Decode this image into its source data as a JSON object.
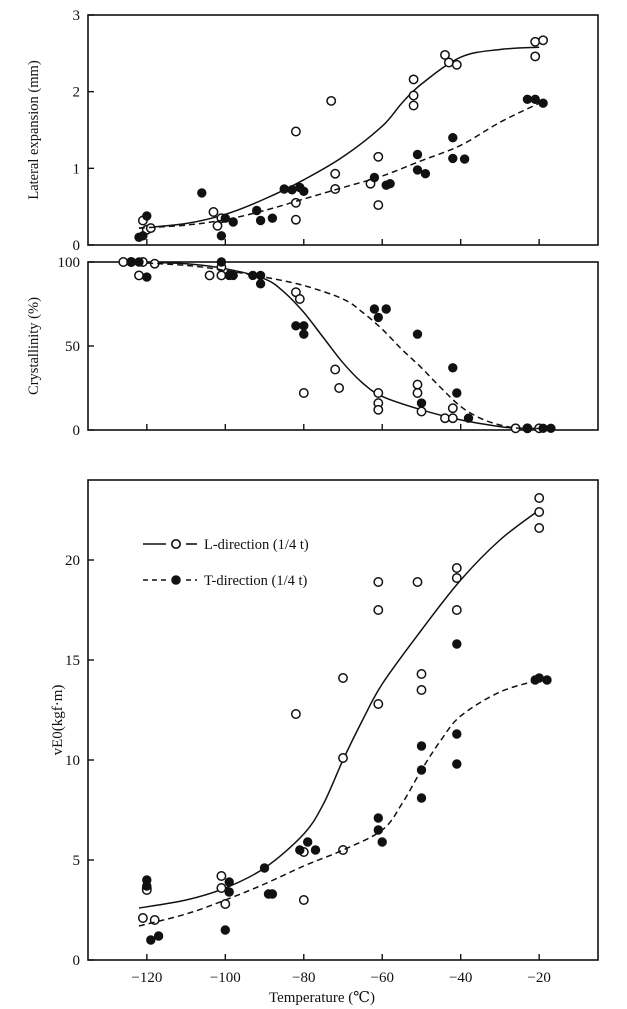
{
  "xaxis": {
    "label": "Temperature (℃)",
    "range": [
      -135,
      -5
    ],
    "ticks": [
      -120,
      -100,
      -80,
      -60,
      -40,
      -20
    ],
    "tick_labels": [
      "−120",
      "−100",
      "−80",
      "−60",
      "−40",
      "−20"
    ]
  },
  "chart_data": [
    {
      "type": "scatter",
      "title": "",
      "ylabel": "Lateral expansion (mm)",
      "xlabel": "",
      "xlim": [
        -135,
        -5
      ],
      "ylim": [
        0,
        3
      ],
      "yticks": [
        0,
        1,
        2,
        3
      ],
      "grid": false,
      "series": [
        {
          "marker": "open-circle",
          "line": "solid",
          "points": [
            [
              -121,
              0.32
            ],
            [
              -120,
              0.2
            ],
            [
              -119,
              0.22
            ],
            [
              -103,
              0.43
            ],
            [
              -102,
              0.25
            ],
            [
              -101,
              0.35
            ],
            [
              -82,
              1.48
            ],
            [
              -82,
              0.55
            ],
            [
              -82,
              0.33
            ],
            [
              -73,
              1.88
            ],
            [
              -72,
              0.93
            ],
            [
              -72,
              0.73
            ],
            [
              -63,
              0.8
            ],
            [
              -61,
              1.15
            ],
            [
              -61,
              0.52
            ],
            [
              -52,
              2.16
            ],
            [
              -52,
              1.95
            ],
            [
              -52,
              1.82
            ],
            [
              -44,
              2.48
            ],
            [
              -43,
              2.38
            ],
            [
              -41,
              2.35
            ],
            [
              -21,
              2.65
            ],
            [
              -21,
              2.46
            ],
            [
              -19,
              2.67
            ]
          ],
          "curve": [
            [
              -122,
              0.22
            ],
            [
              -110,
              0.28
            ],
            [
              -100,
              0.4
            ],
            [
              -90,
              0.6
            ],
            [
              -80,
              0.85
            ],
            [
              -70,
              1.15
            ],
            [
              -60,
              1.55
            ],
            [
              -55,
              1.85
            ],
            [
              -50,
              2.1
            ],
            [
              -40,
              2.45
            ],
            [
              -30,
              2.55
            ],
            [
              -20,
              2.58
            ]
          ]
        },
        {
          "marker": "filled-circle",
          "line": "dashed",
          "points": [
            [
              -122,
              0.1
            ],
            [
              -121,
              0.12
            ],
            [
              -120,
              0.38
            ],
            [
              -106,
              0.68
            ],
            [
              -101,
              0.12
            ],
            [
              -100,
              0.35
            ],
            [
              -98,
              0.3
            ],
            [
              -92,
              0.45
            ],
            [
              -91,
              0.32
            ],
            [
              -88,
              0.35
            ],
            [
              -85,
              0.73
            ],
            [
              -83,
              0.72
            ],
            [
              -81,
              0.75
            ],
            [
              -80,
              0.7
            ],
            [
              -62,
              0.88
            ],
            [
              -59,
              0.78
            ],
            [
              -58,
              0.8
            ],
            [
              -51,
              1.18
            ],
            [
              -51,
              0.98
            ],
            [
              -49,
              0.93
            ],
            [
              -42,
              1.4
            ],
            [
              -42,
              1.13
            ],
            [
              -39,
              1.12
            ],
            [
              -23,
              1.9
            ],
            [
              -21,
              1.9
            ],
            [
              -19,
              1.85
            ]
          ],
          "curve": [
            [
              -122,
              0.22
            ],
            [
              -110,
              0.26
            ],
            [
              -100,
              0.33
            ],
            [
              -90,
              0.45
            ],
            [
              -80,
              0.6
            ],
            [
              -70,
              0.75
            ],
            [
              -60,
              0.9
            ],
            [
              -50,
              1.1
            ],
            [
              -40,
              1.3
            ],
            [
              -30,
              1.6
            ],
            [
              -20,
              1.85
            ]
          ]
        }
      ]
    },
    {
      "type": "scatter",
      "title": "",
      "ylabel": "Crystallinity (%)",
      "xlabel": "",
      "xlim": [
        -135,
        -5
      ],
      "ylim": [
        0,
        100
      ],
      "yticks": [
        0,
        50,
        100
      ],
      "grid": false,
      "series": [
        {
          "marker": "open-circle",
          "line": "solid",
          "points": [
            [
              -126,
              100
            ],
            [
              -124,
              100
            ],
            [
              -122,
              92
            ],
            [
              -121,
              100
            ],
            [
              -118,
              99
            ],
            [
              -104,
              92
            ],
            [
              -101,
              97
            ],
            [
              -101,
              92
            ],
            [
              -82,
              82
            ],
            [
              -81,
              78
            ],
            [
              -80,
              22
            ],
            [
              -72,
              36
            ],
            [
              -71,
              25
            ],
            [
              -61,
              22
            ],
            [
              -61,
              16
            ],
            [
              -61,
              12
            ],
            [
              -51,
              27
            ],
            [
              -51,
              22
            ],
            [
              -50,
              11
            ],
            [
              -44,
              7
            ],
            [
              -42,
              13
            ],
            [
              -42,
              7
            ],
            [
              -26,
              1
            ],
            [
              -23,
              1
            ],
            [
              -20,
              1
            ]
          ],
          "curve": [
            [
              -125,
              100
            ],
            [
              -110,
              99
            ],
            [
              -100,
              96
            ],
            [
              -90,
              90
            ],
            [
              -85,
              82
            ],
            [
              -80,
              70
            ],
            [
              -75,
              55
            ],
            [
              -70,
              40
            ],
            [
              -65,
              28
            ],
            [
              -60,
              20
            ],
            [
              -50,
              12
            ],
            [
              -40,
              6
            ],
            [
              -30,
              2
            ],
            [
              -25,
              1
            ],
            [
              -20,
              1
            ]
          ]
        },
        {
          "marker": "filled-circle",
          "line": "dashed",
          "points": [
            [
              -124,
              100
            ],
            [
              -122,
              100
            ],
            [
              -120,
              91
            ],
            [
              -101,
              100
            ],
            [
              -99,
              92
            ],
            [
              -98,
              92
            ],
            [
              -93,
              92
            ],
            [
              -91,
              92
            ],
            [
              -91,
              87
            ],
            [
              -82,
              62
            ],
            [
              -80,
              62
            ],
            [
              -80,
              57
            ],
            [
              -62,
              72
            ],
            [
              -61,
              67
            ],
            [
              -59,
              72
            ],
            [
              -51,
              57
            ],
            [
              -50,
              16
            ],
            [
              -42,
              37
            ],
            [
              -41,
              22
            ],
            [
              -38,
              7
            ],
            [
              -23,
              1
            ],
            [
              -19,
              1
            ],
            [
              -17,
              1
            ]
          ],
          "curve": [
            [
              -125,
              100
            ],
            [
              -110,
              98
            ],
            [
              -100,
              95
            ],
            [
              -90,
              91
            ],
            [
              -80,
              86
            ],
            [
              -70,
              78
            ],
            [
              -65,
              70
            ],
            [
              -60,
              60
            ],
            [
              -55,
              48
            ],
            [
              -50,
              37
            ],
            [
              -45,
              25
            ],
            [
              -40,
              14
            ],
            [
              -35,
              7
            ],
            [
              -30,
              3
            ],
            [
              -25,
              1
            ],
            [
              -18,
              1
            ]
          ]
        }
      ]
    },
    {
      "type": "scatter",
      "title": "",
      "ylabel": "vE0(kgf·m)",
      "xlabel": "Temperature (℃)",
      "xlim": [
        -135,
        -5
      ],
      "ylim": [
        0,
        24
      ],
      "yticks": [
        0,
        5,
        10,
        15,
        20
      ],
      "grid": false,
      "legend_position": "top-left",
      "series": [
        {
          "name": "L-direction (1/4 t)",
          "marker": "open-circle",
          "line": "solid",
          "points": [
            [
              -121,
              2.1
            ],
            [
              -120,
              3.6
            ],
            [
              -120,
              3.5
            ],
            [
              -118,
              2.0
            ],
            [
              -101,
              4.2
            ],
            [
              -101,
              3.6
            ],
            [
              -100,
              2.8
            ],
            [
              -82,
              12.3
            ],
            [
              -80,
              5.4
            ],
            [
              -80,
              3.0
            ],
            [
              -70,
              14.1
            ],
            [
              -70,
              10.1
            ],
            [
              -70,
              5.5
            ],
            [
              -61,
              18.9
            ],
            [
              -61,
              17.5
            ],
            [
              -61,
              12.8
            ],
            [
              -51,
              18.9
            ],
            [
              -50,
              14.3
            ],
            [
              -50,
              13.5
            ],
            [
              -41,
              19.6
            ],
            [
              -41,
              19.1
            ],
            [
              -41,
              17.5
            ],
            [
              -20,
              23.1
            ],
            [
              -20,
              22.4
            ],
            [
              -20,
              21.6
            ]
          ],
          "curve": [
            [
              -122,
              2.6
            ],
            [
              -110,
              3.0
            ],
            [
              -100,
              3.6
            ],
            [
              -90,
              4.6
            ],
            [
              -80,
              6.3
            ],
            [
              -75,
              7.8
            ],
            [
              -70,
              10.0
            ],
            [
              -65,
              12.0
            ],
            [
              -60,
              13.8
            ],
            [
              -50,
              16.5
            ],
            [
              -40,
              19.0
            ],
            [
              -30,
              21.0
            ],
            [
              -20,
              22.5
            ]
          ]
        },
        {
          "name": "T-direction (1/4 t)",
          "marker": "filled-circle",
          "line": "dashed",
          "points": [
            [
              -120,
              4.0
            ],
            [
              -120,
              3.7
            ],
            [
              -119,
              1.0
            ],
            [
              -117,
              1.2
            ],
            [
              -99,
              3.9
            ],
            [
              -99,
              3.4
            ],
            [
              -100,
              1.5
            ],
            [
              -90,
              4.6
            ],
            [
              -89,
              3.3
            ],
            [
              -88,
              3.3
            ],
            [
              -81,
              5.5
            ],
            [
              -79,
              5.9
            ],
            [
              -77,
              5.5
            ],
            [
              -61,
              7.1
            ],
            [
              -61,
              6.5
            ],
            [
              -60,
              5.9
            ],
            [
              -50,
              10.7
            ],
            [
              -50,
              9.5
            ],
            [
              -50,
              8.1
            ],
            [
              -41,
              15.8
            ],
            [
              -41,
              11.3
            ],
            [
              -41,
              9.8
            ],
            [
              -21,
              14.0
            ],
            [
              -20,
              14.1
            ],
            [
              -18,
              14.0
            ]
          ],
          "curve": [
            [
              -122,
              1.7
            ],
            [
              -110,
              2.3
            ],
            [
              -100,
              3.0
            ],
            [
              -90,
              3.8
            ],
            [
              -80,
              4.7
            ],
            [
              -70,
              5.5
            ],
            [
              -60,
              6.5
            ],
            [
              -55,
              7.8
            ],
            [
              -50,
              9.5
            ],
            [
              -45,
              11.0
            ],
            [
              -40,
              12.2
            ],
            [
              -30,
              13.4
            ],
            [
              -20,
              14.0
            ]
          ]
        }
      ]
    }
  ]
}
